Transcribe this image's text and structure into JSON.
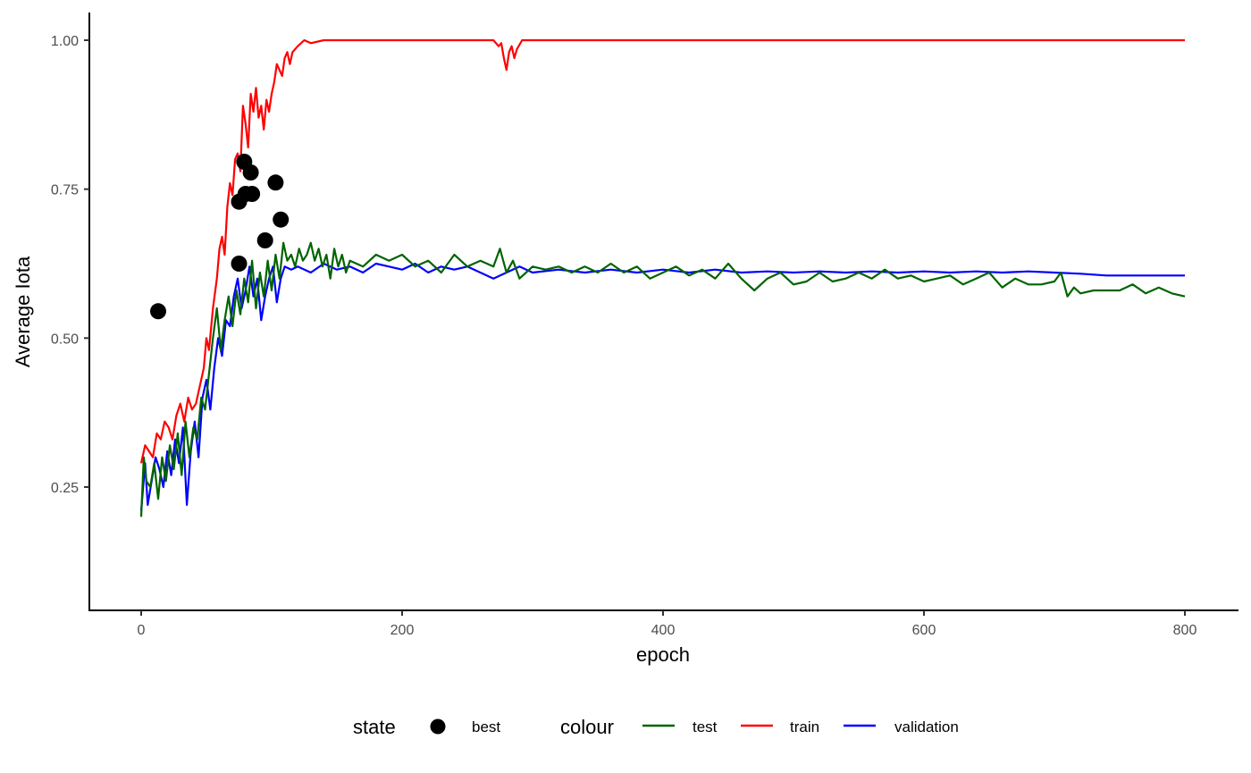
{
  "chart_data": {
    "type": "line",
    "title": "",
    "xlabel": "epoch",
    "ylabel": "Average Iota",
    "xlim": [
      -40,
      840
    ],
    "ylim": [
      0.054,
      1.046
    ],
    "x_ticks": [
      0,
      200,
      400,
      600,
      800
    ],
    "x_tick_labels": [
      "0",
      "200",
      "400",
      "600",
      "800"
    ],
    "y_ticks": [
      0.25,
      0.5,
      0.75,
      1.0
    ],
    "y_tick_labels": [
      "0.25",
      "0.50",
      "0.75",
      "1.00"
    ],
    "grid": false,
    "legend_position": "bottom",
    "series": [
      {
        "name": "train",
        "color": "#FF0000",
        "points": [
          [
            0,
            0.29
          ],
          [
            3,
            0.32
          ],
          [
            6,
            0.31
          ],
          [
            9,
            0.3
          ],
          [
            12,
            0.34
          ],
          [
            15,
            0.33
          ],
          [
            18,
            0.36
          ],
          [
            21,
            0.35
          ],
          [
            24,
            0.33
          ],
          [
            27,
            0.37
          ],
          [
            30,
            0.39
          ],
          [
            33,
            0.36
          ],
          [
            36,
            0.4
          ],
          [
            39,
            0.38
          ],
          [
            42,
            0.39
          ],
          [
            45,
            0.42
          ],
          [
            48,
            0.45
          ],
          [
            50,
            0.5
          ],
          [
            52,
            0.48
          ],
          [
            55,
            0.55
          ],
          [
            58,
            0.6
          ],
          [
            60,
            0.65
          ],
          [
            62,
            0.67
          ],
          [
            64,
            0.64
          ],
          [
            66,
            0.72
          ],
          [
            68,
            0.76
          ],
          [
            70,
            0.74
          ],
          [
            72,
            0.8
          ],
          [
            74,
            0.81
          ],
          [
            76,
            0.78
          ],
          [
            78,
            0.89
          ],
          [
            80,
            0.86
          ],
          [
            82,
            0.82
          ],
          [
            84,
            0.91
          ],
          [
            86,
            0.88
          ],
          [
            88,
            0.92
          ],
          [
            90,
            0.87
          ],
          [
            92,
            0.89
          ],
          [
            94,
            0.85
          ],
          [
            96,
            0.9
          ],
          [
            98,
            0.88
          ],
          [
            100,
            0.91
          ],
          [
            102,
            0.93
          ],
          [
            104,
            0.96
          ],
          [
            106,
            0.95
          ],
          [
            108,
            0.94
          ],
          [
            110,
            0.97
          ],
          [
            112,
            0.98
          ],
          [
            114,
            0.96
          ],
          [
            116,
            0.98
          ],
          [
            120,
            0.99
          ],
          [
            125,
            1.0
          ],
          [
            130,
            0.995
          ],
          [
            140,
            1.0
          ],
          [
            150,
            1.0
          ],
          [
            200,
            1.0
          ],
          [
            270,
            1.0
          ],
          [
            274,
            0.99
          ],
          [
            276,
            0.995
          ],
          [
            278,
            0.97
          ],
          [
            280,
            0.95
          ],
          [
            282,
            0.98
          ],
          [
            284,
            0.99
          ],
          [
            286,
            0.97
          ],
          [
            288,
            0.985
          ],
          [
            292,
            1.0
          ],
          [
            300,
            1.0
          ],
          [
            400,
            1.0
          ],
          [
            500,
            1.0
          ],
          [
            600,
            1.0
          ],
          [
            700,
            1.0
          ],
          [
            800,
            1.0
          ]
        ]
      },
      {
        "name": "validation",
        "color": "#0000FF",
        "points": [
          [
            0,
            0.21
          ],
          [
            3,
            0.29
          ],
          [
            5,
            0.22
          ],
          [
            8,
            0.26
          ],
          [
            11,
            0.3
          ],
          [
            14,
            0.28
          ],
          [
            17,
            0.25
          ],
          [
            20,
            0.31
          ],
          [
            23,
            0.27
          ],
          [
            26,
            0.33
          ],
          [
            29,
            0.29
          ],
          [
            32,
            0.35
          ],
          [
            35,
            0.22
          ],
          [
            38,
            0.31
          ],
          [
            41,
            0.36
          ],
          [
            44,
            0.3
          ],
          [
            47,
            0.4
          ],
          [
            50,
            0.43
          ],
          [
            53,
            0.38
          ],
          [
            56,
            0.45
          ],
          [
            59,
            0.5
          ],
          [
            62,
            0.47
          ],
          [
            65,
            0.53
          ],
          [
            68,
            0.52
          ],
          [
            71,
            0.57
          ],
          [
            74,
            0.6
          ],
          [
            77,
            0.55
          ],
          [
            80,
            0.58
          ],
          [
            83,
            0.62
          ],
          [
            86,
            0.57
          ],
          [
            89,
            0.6
          ],
          [
            92,
            0.53
          ],
          [
            95,
            0.57
          ],
          [
            98,
            0.6
          ],
          [
            101,
            0.62
          ],
          [
            104,
            0.56
          ],
          [
            107,
            0.6
          ],
          [
            110,
            0.62
          ],
          [
            115,
            0.615
          ],
          [
            120,
            0.62
          ],
          [
            130,
            0.61
          ],
          [
            140,
            0.625
          ],
          [
            150,
            0.615
          ],
          [
            160,
            0.62
          ],
          [
            170,
            0.61
          ],
          [
            180,
            0.625
          ],
          [
            190,
            0.62
          ],
          [
            200,
            0.615
          ],
          [
            210,
            0.625
          ],
          [
            220,
            0.61
          ],
          [
            230,
            0.62
          ],
          [
            240,
            0.615
          ],
          [
            250,
            0.62
          ],
          [
            260,
            0.61
          ],
          [
            270,
            0.6
          ],
          [
            280,
            0.61
          ],
          [
            290,
            0.62
          ],
          [
            300,
            0.61
          ],
          [
            320,
            0.615
          ],
          [
            340,
            0.61
          ],
          [
            360,
            0.615
          ],
          [
            380,
            0.61
          ],
          [
            400,
            0.615
          ],
          [
            420,
            0.61
          ],
          [
            440,
            0.615
          ],
          [
            460,
            0.61
          ],
          [
            480,
            0.612
          ],
          [
            500,
            0.61
          ],
          [
            520,
            0.612
          ],
          [
            540,
            0.61
          ],
          [
            560,
            0.612
          ],
          [
            580,
            0.61
          ],
          [
            600,
            0.612
          ],
          [
            620,
            0.61
          ],
          [
            640,
            0.612
          ],
          [
            660,
            0.61
          ],
          [
            680,
            0.612
          ],
          [
            700,
            0.61
          ],
          [
            720,
            0.608
          ],
          [
            740,
            0.605
          ],
          [
            760,
            0.605
          ],
          [
            780,
            0.605
          ],
          [
            800,
            0.605
          ]
        ]
      },
      {
        "name": "test",
        "color": "#006400",
        "points": [
          [
            0,
            0.2
          ],
          [
            2,
            0.3
          ],
          [
            4,
            0.26
          ],
          [
            7,
            0.25
          ],
          [
            10,
            0.29
          ],
          [
            13,
            0.23
          ],
          [
            16,
            0.3
          ],
          [
            19,
            0.26
          ],
          [
            22,
            0.32
          ],
          [
            25,
            0.28
          ],
          [
            28,
            0.34
          ],
          [
            31,
            0.27
          ],
          [
            34,
            0.36
          ],
          [
            37,
            0.3
          ],
          [
            40,
            0.35
          ],
          [
            43,
            0.33
          ],
          [
            46,
            0.4
          ],
          [
            49,
            0.38
          ],
          [
            52,
            0.44
          ],
          [
            55,
            0.5
          ],
          [
            58,
            0.55
          ],
          [
            61,
            0.48
          ],
          [
            64,
            0.53
          ],
          [
            67,
            0.57
          ],
          [
            70,
            0.52
          ],
          [
            73,
            0.58
          ],
          [
            76,
            0.54
          ],
          [
            79,
            0.6
          ],
          [
            82,
            0.56
          ],
          [
            85,
            0.63
          ],
          [
            88,
            0.55
          ],
          [
            91,
            0.61
          ],
          [
            94,
            0.57
          ],
          [
            97,
            0.63
          ],
          [
            100,
            0.58
          ],
          [
            103,
            0.64
          ],
          [
            106,
            0.6
          ],
          [
            109,
            0.66
          ],
          [
            112,
            0.63
          ],
          [
            115,
            0.64
          ],
          [
            118,
            0.62
          ],
          [
            121,
            0.65
          ],
          [
            124,
            0.63
          ],
          [
            127,
            0.64
          ],
          [
            130,
            0.66
          ],
          [
            133,
            0.63
          ],
          [
            136,
            0.65
          ],
          [
            139,
            0.62
          ],
          [
            142,
            0.64
          ],
          [
            145,
            0.6
          ],
          [
            148,
            0.65
          ],
          [
            151,
            0.62
          ],
          [
            154,
            0.64
          ],
          [
            157,
            0.61
          ],
          [
            160,
            0.63
          ],
          [
            170,
            0.62
          ],
          [
            180,
            0.64
          ],
          [
            190,
            0.63
          ],
          [
            200,
            0.64
          ],
          [
            210,
            0.62
          ],
          [
            220,
            0.63
          ],
          [
            230,
            0.61
          ],
          [
            240,
            0.64
          ],
          [
            250,
            0.62
          ],
          [
            260,
            0.63
          ],
          [
            270,
            0.62
          ],
          [
            275,
            0.65
          ],
          [
            280,
            0.61
          ],
          [
            285,
            0.63
          ],
          [
            290,
            0.6
          ],
          [
            300,
            0.62
          ],
          [
            310,
            0.615
          ],
          [
            320,
            0.62
          ],
          [
            330,
            0.61
          ],
          [
            340,
            0.62
          ],
          [
            350,
            0.61
          ],
          [
            360,
            0.625
          ],
          [
            370,
            0.61
          ],
          [
            380,
            0.62
          ],
          [
            390,
            0.6
          ],
          [
            400,
            0.61
          ],
          [
            410,
            0.62
          ],
          [
            420,
            0.605
          ],
          [
            430,
            0.615
          ],
          [
            440,
            0.6
          ],
          [
            450,
            0.625
          ],
          [
            460,
            0.6
          ],
          [
            470,
            0.58
          ],
          [
            480,
            0.6
          ],
          [
            490,
            0.61
          ],
          [
            500,
            0.59
          ],
          [
            510,
            0.595
          ],
          [
            520,
            0.61
          ],
          [
            530,
            0.595
          ],
          [
            540,
            0.6
          ],
          [
            550,
            0.61
          ],
          [
            560,
            0.6
          ],
          [
            570,
            0.615
          ],
          [
            580,
            0.6
          ],
          [
            590,
            0.605
          ],
          [
            600,
            0.595
          ],
          [
            610,
            0.6
          ],
          [
            620,
            0.605
          ],
          [
            630,
            0.59
          ],
          [
            640,
            0.6
          ],
          [
            650,
            0.61
          ],
          [
            660,
            0.585
          ],
          [
            670,
            0.6
          ],
          [
            680,
            0.59
          ],
          [
            690,
            0.59
          ],
          [
            700,
            0.595
          ],
          [
            705,
            0.61
          ],
          [
            710,
            0.57
          ],
          [
            715,
            0.585
          ],
          [
            720,
            0.575
          ],
          [
            730,
            0.58
          ],
          [
            740,
            0.58
          ],
          [
            750,
            0.58
          ],
          [
            760,
            0.59
          ],
          [
            770,
            0.575
          ],
          [
            780,
            0.585
          ],
          [
            790,
            0.575
          ],
          [
            800,
            0.57
          ]
        ]
      }
    ],
    "best_points": {
      "name": "best",
      "color": "#000000",
      "points": [
        [
          13,
          0.545
        ],
        [
          75,
          0.625
        ],
        [
          75,
          0.729
        ],
        [
          79,
          0.796
        ],
        [
          80,
          0.742
        ],
        [
          84,
          0.778
        ],
        [
          85,
          0.742
        ],
        [
          95,
          0.664
        ],
        [
          103,
          0.761
        ],
        [
          107,
          0.699
        ]
      ]
    },
    "legend": {
      "state_title": "state",
      "state_items": [
        {
          "label": "best",
          "shape": "point",
          "color": "#000000"
        }
      ],
      "colour_title": "colour",
      "colour_items": [
        {
          "label": "test",
          "color": "#006400"
        },
        {
          "label": "train",
          "color": "#FF0000"
        },
        {
          "label": "validation",
          "color": "#0000FF"
        }
      ]
    }
  }
}
